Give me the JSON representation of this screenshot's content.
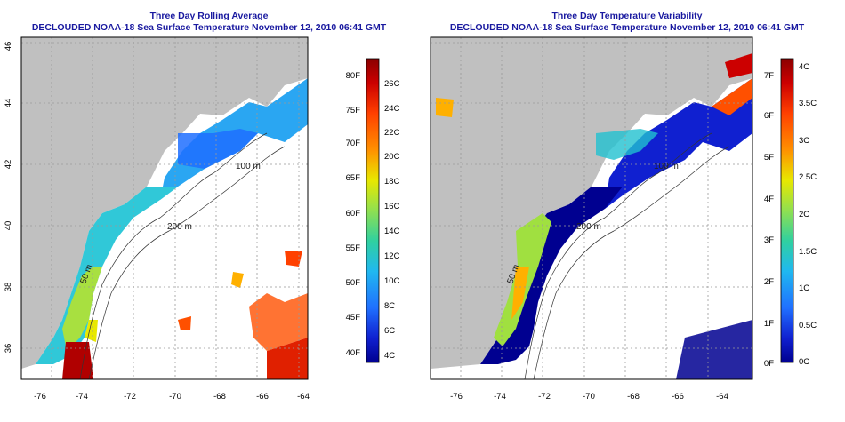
{
  "panels": [
    {
      "title": "Three Day Rolling Average",
      "subtitle": "DECLOUDED NOAA-18 Sea Surface Temperature November 12, 2010 06:41 GMT",
      "colorbar": {
        "left_labels": [
          "80F",
          "75F",
          "70F",
          "65F",
          "60F",
          "55F",
          "50F",
          "45F",
          "40F"
        ],
        "right_labels": [
          "26C",
          "24C",
          "22C",
          "20C",
          "18C",
          "16C",
          "14C",
          "12C",
          "10C",
          "8C",
          "6C",
          "4C"
        ],
        "colors": [
          "#8b0000",
          "#c00000",
          "#e01a00",
          "#ff4000",
          "#ff8000",
          "#ffc000",
          "#e8e800",
          "#a0e040",
          "#40d080",
          "#20c0d0",
          "#20a0ff",
          "#2060ff",
          "#1020d0",
          "#000090"
        ]
      }
    },
    {
      "title": "Three Day Temperature Variability",
      "subtitle": "DECLOUDED NOAA-18 Sea Surface Temperature November 12, 2010 06:41 GMT",
      "colorbar": {
        "left_labels": [
          "7F",
          "6F",
          "5F",
          "4F",
          "3F",
          "2F",
          "1F",
          "0F"
        ],
        "right_labels": [
          "4C",
          "3.5C",
          "3C",
          "2.5C",
          "2C",
          "1.5C",
          "1C",
          "0.5C",
          "0C"
        ],
        "colors": [
          "#8b0000",
          "#c00000",
          "#e01a00",
          "#ff4000",
          "#ff8000",
          "#ffc000",
          "#e8e800",
          "#a0e040",
          "#40d080",
          "#20c0d0",
          "#20a0ff",
          "#2060ff",
          "#1020d0",
          "#000090"
        ]
      }
    }
  ],
  "map": {
    "x_ticks": [
      "-76",
      "-74",
      "-72",
      "-70",
      "-68",
      "-66",
      "-64"
    ],
    "y_ticks": [
      "46",
      "44",
      "42",
      "40",
      "38",
      "36"
    ],
    "contours": [
      "200 m",
      "100 m",
      "50 m",
      "50 m",
      "200 m"
    ],
    "colors": {
      "land": "#c0c0c0",
      "grid": "#999999",
      "title": "#1a1aa0"
    }
  }
}
